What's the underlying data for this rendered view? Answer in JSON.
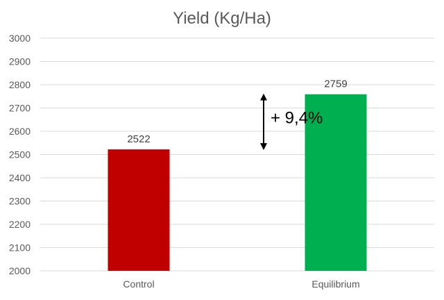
{
  "chart_data": {
    "type": "bar",
    "title": "Yield (Kg/Ha)",
    "xlabel": "",
    "ylabel": "",
    "categories": [
      "Control",
      "Equilibrium"
    ],
    "values": [
      2522,
      2759
    ],
    "data_labels": [
      "2522",
      "2759"
    ],
    "colors": [
      "#c00000",
      "#00b050"
    ],
    "ylim": [
      2000,
      3000
    ],
    "yticks": [
      2000,
      2100,
      2200,
      2300,
      2400,
      2500,
      2600,
      2700,
      2800,
      2900,
      3000
    ],
    "grid": true,
    "legend": "none",
    "annotation": {
      "text": "+ 9,4%",
      "from": 2522,
      "to": 2759,
      "arrow": "double-headed"
    }
  }
}
